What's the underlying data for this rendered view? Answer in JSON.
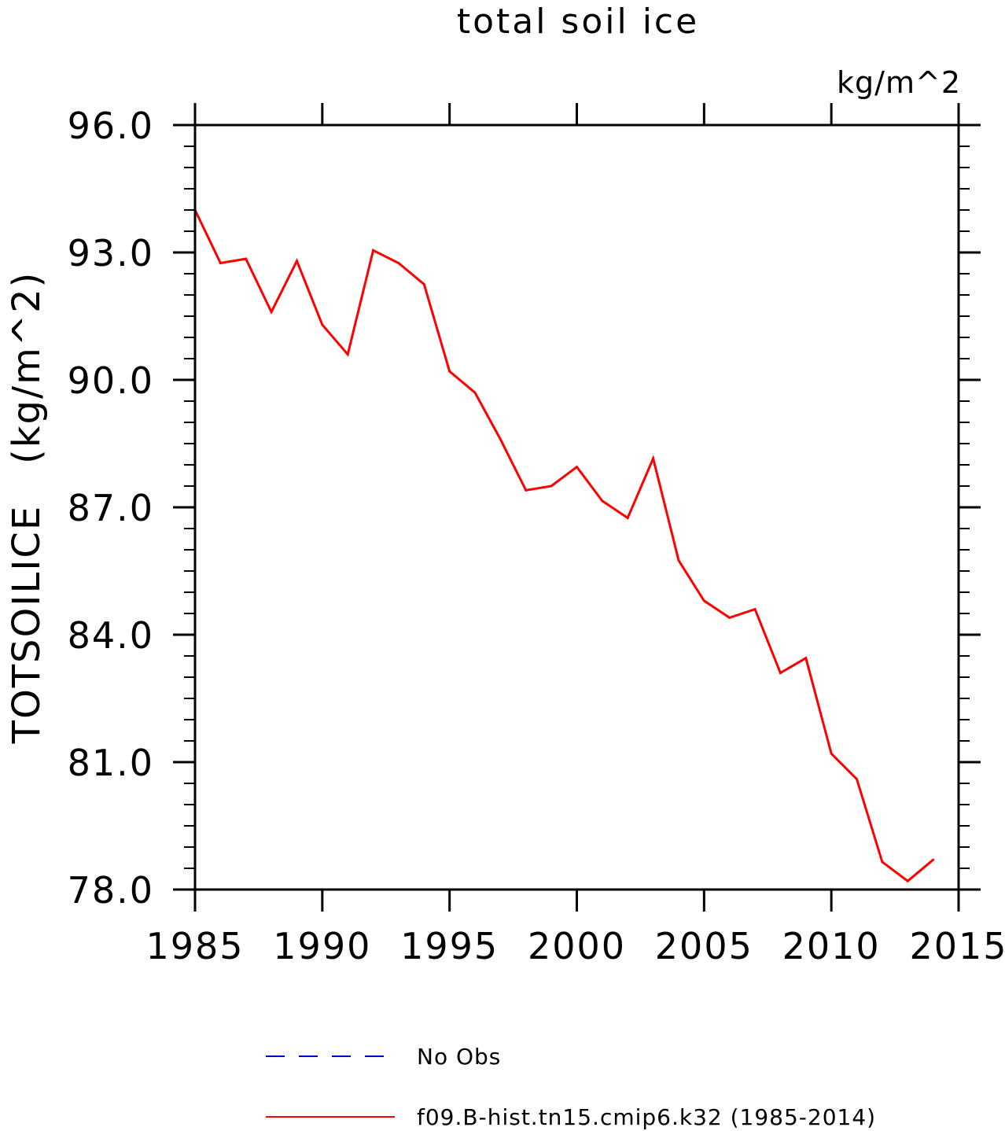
{
  "chart_data": {
    "type": "line",
    "title": "total soil ice",
    "units_label": "kg/m^2",
    "ylabel": "TOTSOILICE   (kg/m^2)",
    "xlabel": "",
    "xlim": [
      1985,
      2015
    ],
    "ylim": [
      78.0,
      96.0
    ],
    "x_ticks": [
      "1985",
      "1990",
      "1995",
      "2000",
      "2005",
      "2010",
      "2015"
    ],
    "y_ticks": [
      "78.0",
      "81.0",
      "84.0",
      "87.0",
      "90.0",
      "93.0",
      "96.0"
    ],
    "grid": false,
    "legend_position": "bottom",
    "series": [
      {
        "name": "No Obs",
        "color": "#0000cc",
        "style": "dashed",
        "x": [],
        "values": []
      },
      {
        "name": "f09.B-hist.tn15.cmip6.k32 (1985-2014)",
        "color": "#ff0000",
        "style": "solid",
        "x": [
          1985,
          1986,
          1987,
          1988,
          1989,
          1990,
          1991,
          1992,
          1993,
          1994,
          1995,
          1996,
          1997,
          1998,
          1999,
          2000,
          2001,
          2002,
          2003,
          2004,
          2005,
          2006,
          2007,
          2008,
          2009,
          2010,
          2011,
          2012,
          2013,
          2014
        ],
        "values": [
          94.0,
          92.75,
          92.85,
          91.6,
          92.8,
          91.3,
          90.6,
          93.05,
          92.75,
          92.25,
          90.2,
          89.7,
          88.6,
          87.4,
          87.5,
          87.95,
          87.15,
          86.75,
          88.15,
          85.75,
          84.8,
          84.4,
          84.6,
          83.1,
          83.45,
          81.2,
          80.6,
          78.65,
          78.2,
          78.7
        ]
      }
    ]
  }
}
